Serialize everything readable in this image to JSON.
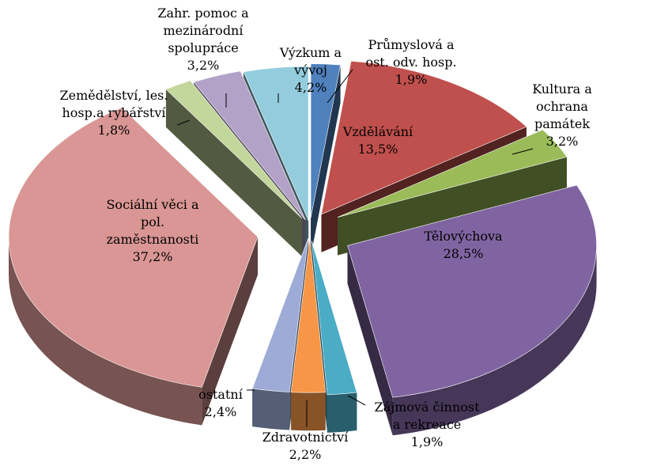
{
  "chart_data": {
    "type": "pie",
    "style": "3d-exploded",
    "title": "",
    "slices": [
      {
        "name": "Průmyslová a ost. odv. hosp.",
        "value": 1.9,
        "value_label": "1,9%",
        "color": "#4f81bd",
        "label_lines": [
          "Průmyslová a",
          "ost. odv. hosp."
        ]
      },
      {
        "name": "Vzdělávání",
        "value": 13.5,
        "value_label": "13,5%",
        "color": "#c0504d",
        "label_lines": [
          "Vzdělávání"
        ]
      },
      {
        "name": "Kultura a ochrana památek",
        "value": 3.2,
        "value_label": "3,2%",
        "color": "#9bbb59",
        "label_lines": [
          "Kultura a",
          "ochrana",
          "památek"
        ]
      },
      {
        "name": "Tělovýchova",
        "value": 28.5,
        "value_label": "28,5%",
        "color": "#8064a2",
        "label_lines": [
          "Tělovýchova"
        ]
      },
      {
        "name": "Zájmová činnost a rekreace",
        "value": 1.9,
        "value_label": "1,9%",
        "color": "#4bacc6",
        "label_lines": [
          "Zájmová činnost",
          "a rekreace"
        ]
      },
      {
        "name": "Zdravotnictví",
        "value": 2.2,
        "value_label": "2,2%",
        "color": "#f79646",
        "label_lines": [
          "Zdravotnictví"
        ]
      },
      {
        "name": "ostatní",
        "value": 2.4,
        "value_label": "2,4%",
        "color": "#9dabd6",
        "label_lines": [
          "ostatní"
        ]
      },
      {
        "name": "Sociální věci a pol. zaměstnanosti",
        "value": 37.2,
        "value_label": "37,2%",
        "color": "#d99694",
        "label_lines": [
          "Sociální věci a",
          "pol.",
          "zaměstnanosti"
        ]
      },
      {
        "name": "Zemědělství, les. hosp.a rybářství",
        "value": 1.8,
        "value_label": "1,8%",
        "color": "#c3d69b",
        "label_lines": [
          "Zemědělství, les.",
          "hosp.a rybářství"
        ]
      },
      {
        "name": "Zahr. pomoc a mezinárodní spolupráce",
        "value": 3.2,
        "value_label": "3,2%",
        "color": "#b3a2c7",
        "label_lines": [
          "Zahr. pomoc a",
          "mezinárodní",
          "spolupráce"
        ]
      },
      {
        "name": "Výzkum a vývoj",
        "value": 4.2,
        "value_label": "4,2%",
        "color": "#93cddd",
        "label_lines": [
          "Výzkum a",
          "vývoj"
        ]
      }
    ]
  }
}
